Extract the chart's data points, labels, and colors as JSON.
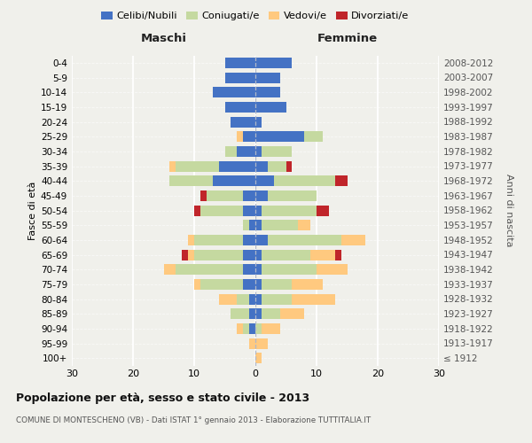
{
  "age_groups": [
    "100+",
    "95-99",
    "90-94",
    "85-89",
    "80-84",
    "75-79",
    "70-74",
    "65-69",
    "60-64",
    "55-59",
    "50-54",
    "45-49",
    "40-44",
    "35-39",
    "30-34",
    "25-29",
    "20-24",
    "15-19",
    "10-14",
    "5-9",
    "0-4"
  ],
  "birth_years": [
    "≤ 1912",
    "1913-1917",
    "1918-1922",
    "1923-1927",
    "1928-1932",
    "1933-1937",
    "1938-1942",
    "1943-1947",
    "1948-1952",
    "1953-1957",
    "1958-1962",
    "1963-1967",
    "1968-1972",
    "1973-1977",
    "1978-1982",
    "1983-1987",
    "1988-1992",
    "1993-1997",
    "1998-2002",
    "2003-2007",
    "2008-2012"
  ],
  "colors": {
    "celibi": "#4472c4",
    "coniugati": "#c5d9a0",
    "vedovi": "#ffc97f",
    "divorziati": "#c0252a"
  },
  "maschi": {
    "celibi": [
      0,
      0,
      1,
      1,
      1,
      2,
      2,
      2,
      2,
      1,
      2,
      2,
      7,
      6,
      3,
      2,
      4,
      5,
      7,
      5,
      5
    ],
    "coniugati": [
      0,
      0,
      1,
      3,
      2,
      7,
      11,
      8,
      8,
      1,
      7,
      6,
      7,
      7,
      2,
      0,
      0,
      0,
      0,
      0,
      0
    ],
    "vedovi": [
      0,
      1,
      1,
      0,
      3,
      1,
      2,
      1,
      1,
      0,
      0,
      0,
      0,
      1,
      0,
      1,
      0,
      0,
      0,
      0,
      0
    ],
    "divorziati": [
      0,
      0,
      0,
      0,
      0,
      0,
      0,
      1,
      0,
      0,
      1,
      1,
      0,
      0,
      0,
      0,
      0,
      0,
      0,
      0,
      0
    ]
  },
  "femmine": {
    "celibi": [
      0,
      0,
      0,
      1,
      1,
      1,
      1,
      1,
      2,
      1,
      1,
      2,
      3,
      2,
      1,
      8,
      1,
      5,
      4,
      4,
      6
    ],
    "coniugati": [
      0,
      0,
      1,
      3,
      5,
      5,
      9,
      8,
      12,
      6,
      9,
      8,
      10,
      3,
      5,
      3,
      0,
      0,
      0,
      0,
      0
    ],
    "vedovi": [
      1,
      2,
      3,
      4,
      7,
      5,
      5,
      4,
      4,
      2,
      0,
      0,
      0,
      0,
      0,
      0,
      0,
      0,
      0,
      0,
      0
    ],
    "divorziati": [
      0,
      0,
      0,
      0,
      0,
      0,
      0,
      1,
      0,
      0,
      2,
      0,
      2,
      1,
      0,
      0,
      0,
      0,
      0,
      0,
      0
    ]
  },
  "xlim": 30,
  "title": "Popolazione per età, sesso e stato civile - 2013",
  "subtitle": "COMUNE DI MONTESCHENO (VB) - Dati ISTAT 1° gennaio 2013 - Elaborazione TUTTITALIA.IT",
  "xlabel_left": "Maschi",
  "xlabel_right": "Femmine",
  "ylabel_left": "Fasce di età",
  "ylabel_right": "Anni di nascita",
  "legend_labels": [
    "Celibi/Nubili",
    "Coniugati/e",
    "Vedovi/e",
    "Divorziati/e"
  ],
  "background_color": "#f0f0eb"
}
